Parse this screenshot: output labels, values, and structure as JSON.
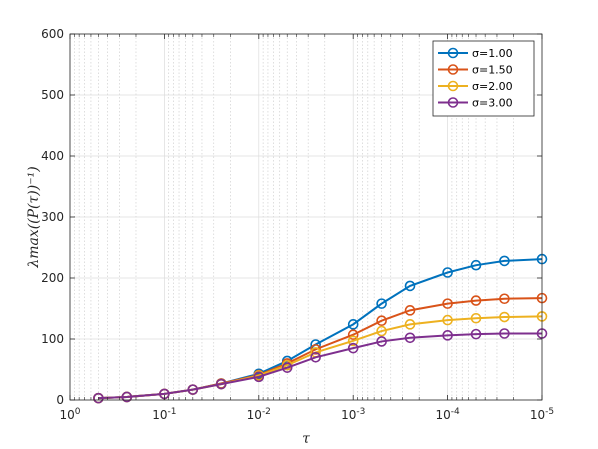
{
  "chart_data": {
    "type": "line",
    "xscale": "log",
    "xdirection": "reversed",
    "xlim": [
      1,
      1e-05
    ],
    "ylim": [
      0,
      600
    ],
    "xlabel": "τ",
    "ylabel": "λmax((P(τ))⁻¹)",
    "x_ticks": [
      {
        "value": 1,
        "base": "10",
        "exp": "0"
      },
      {
        "value": 0.1,
        "base": "10",
        "exp": "-1"
      },
      {
        "value": 0.01,
        "base": "10",
        "exp": "-2"
      },
      {
        "value": 0.001,
        "base": "10",
        "exp": "-3"
      },
      {
        "value": 0.0001,
        "base": "10",
        "exp": "-4"
      },
      {
        "value": 1e-05,
        "base": "10",
        "exp": "-5"
      }
    ],
    "y_ticks": [
      "0",
      "100",
      "200",
      "300",
      "400",
      "500",
      "600"
    ],
    "grid": "major and minor (dotted)",
    "legend_position": "top-right",
    "x": [
      0.5,
      0.25,
      0.1,
      0.05,
      0.025,
      0.01,
      0.005,
      0.0025,
      0.001,
      0.0005,
      0.00025,
      0.0001,
      5e-05,
      2.5e-05,
      1e-05
    ],
    "series": [
      {
        "name": "σ=1.00",
        "color": "#0072BD",
        "values": [
          3,
          5,
          10,
          17,
          27,
          43,
          64,
          91,
          124,
          158,
          187,
          209,
          221,
          228,
          231
        ]
      },
      {
        "name": "σ=1.50",
        "color": "#D95319",
        "values": [
          3,
          5,
          10,
          17,
          27,
          41,
          60,
          83,
          107,
          130,
          147,
          158,
          163,
          166,
          167
        ]
      },
      {
        "name": "σ=2.00",
        "color": "#EDB120",
        "values": [
          3,
          5,
          10,
          17,
          26,
          40,
          57,
          78,
          97,
          113,
          124,
          131,
          134,
          136,
          137
        ]
      },
      {
        "name": "σ=3.00",
        "color": "#7E2F8E",
        "values": [
          3,
          5,
          10,
          17,
          26,
          38,
          53,
          70,
          85,
          96,
          102,
          106,
          108,
          109,
          109
        ]
      }
    ]
  }
}
